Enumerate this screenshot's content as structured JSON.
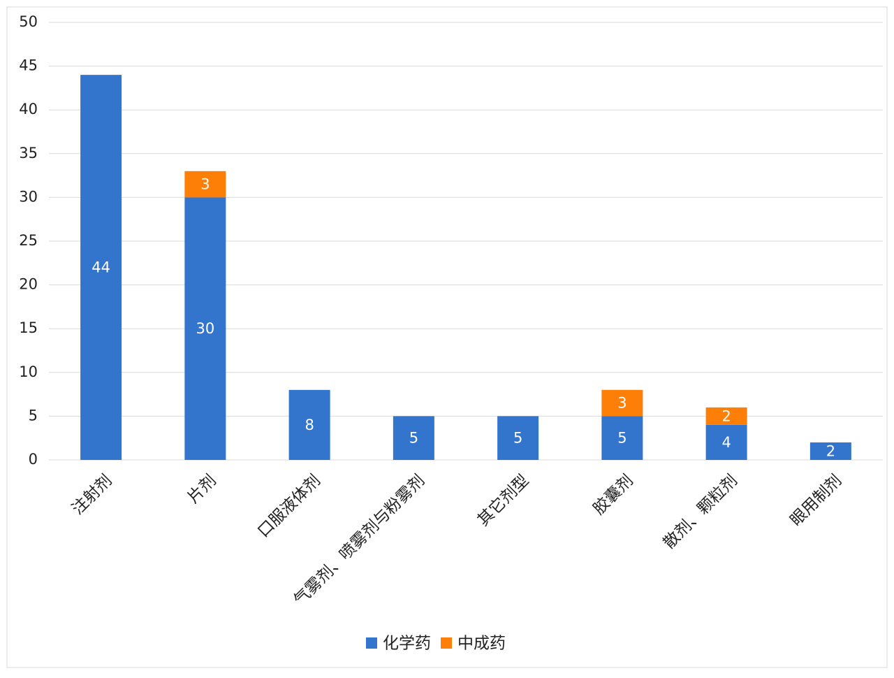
{
  "chart_data": {
    "type": "stacked_bar",
    "categories": [
      "注射剂",
      "片剂",
      "口服液体剂",
      "气雾剂、喷雾剂与粉雾剂",
      "其它剂型",
      "胶囊剂",
      "散剂、颗粒剂",
      "眼用制剂"
    ],
    "series": [
      {
        "name": "化学药",
        "color": "#3375cd",
        "values": [
          44,
          30,
          8,
          5,
          5,
          5,
          4,
          2
        ]
      },
      {
        "name": "中成药",
        "color": "#fd7f07",
        "values": [
          null,
          3,
          null,
          null,
          null,
          3,
          2,
          null
        ]
      }
    ],
    "ylim": [
      0,
      50
    ],
    "yticks": [
      0,
      5,
      10,
      15,
      20,
      25,
      30,
      35,
      40,
      45,
      50
    ],
    "grid": true,
    "legend": "bottom"
  }
}
